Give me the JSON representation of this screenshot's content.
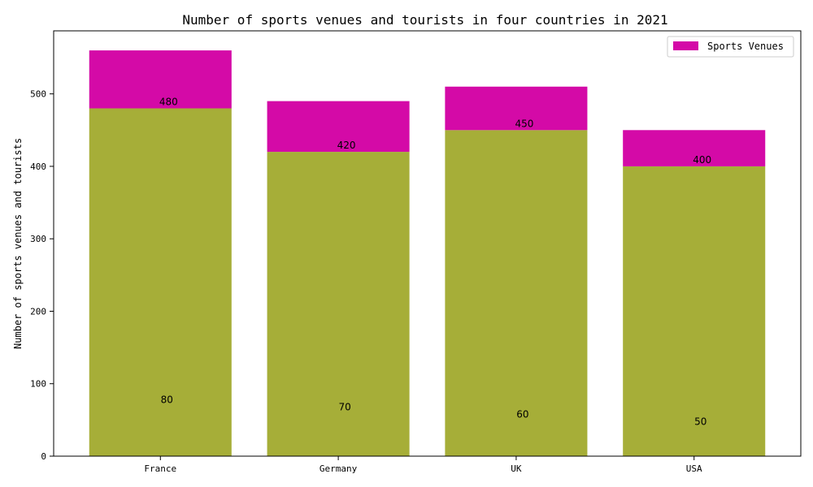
{
  "chart_data": {
    "type": "bar",
    "stacked": true,
    "title": "Number of sports venues and tourists in four countries in 2021",
    "xlabel": "",
    "ylabel": "Number of sports venues and tourists",
    "categories": [
      "France",
      "Germany",
      "UK",
      "USA"
    ],
    "series": [
      {
        "key": "tourists",
        "values": [
          480,
          420,
          450,
          400
        ],
        "color": "#a6ae38"
      },
      {
        "name": "Sports Venues",
        "values": [
          80,
          70,
          60,
          50
        ],
        "color": "#d40aa7"
      }
    ],
    "ylim": [
      0,
      587
    ],
    "yticks": [
      0,
      100,
      200,
      300,
      400,
      500
    ],
    "grid": false,
    "legend": {
      "position": "top-right",
      "entries": [
        "Sports Venues"
      ]
    }
  }
}
